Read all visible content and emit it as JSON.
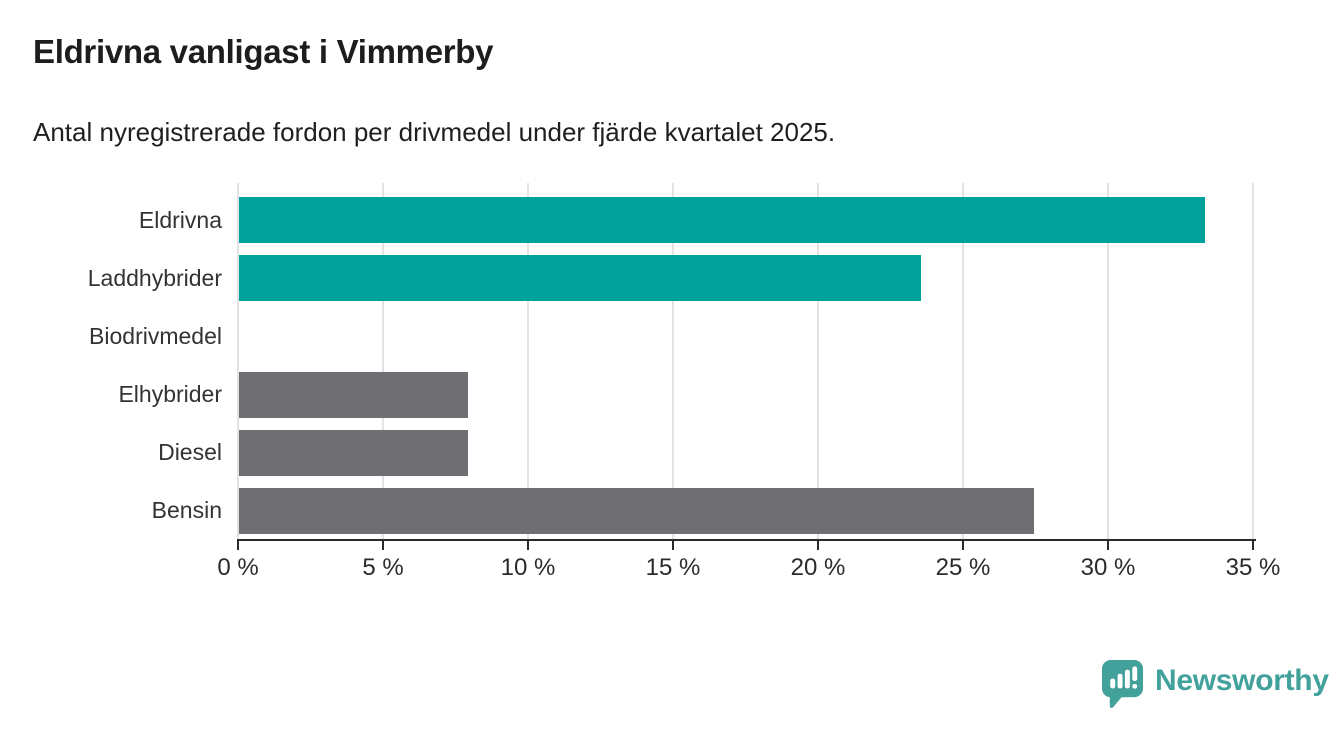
{
  "header": {
    "title": "Eldrivna vanligast i Vimmerby",
    "subtitle": "Antal nyregistrerade fordon per drivmedel under fjärde kvartalet 2025."
  },
  "chart_data": {
    "type": "bar",
    "orientation": "horizontal",
    "title": "Eldrivna vanligast i Vimmerby",
    "subtitle": "Antal nyregistrerade fordon per drivmedel under fjärde kvartalet 2025.",
    "categories": [
      "Eldrivna",
      "Laddhybrider",
      "Biodrivmedel",
      "Elhybrider",
      "Diesel",
      "Bensin"
    ],
    "values": [
      33.3,
      23.5,
      0,
      7.9,
      7.9,
      27.4
    ],
    "unit": "%",
    "bar_colors": [
      "#00a29a",
      "#00a29a",
      "#6e6e73",
      "#6e6e73",
      "#6e6e73",
      "#6e6e73"
    ],
    "xlabel": "",
    "ylabel": "",
    "xlim": [
      0,
      35
    ],
    "x_ticks": [
      0,
      5,
      10,
      15,
      20,
      25,
      30,
      35
    ],
    "x_tick_labels": [
      "0 %",
      "5 %",
      "10 %",
      "15 %",
      "20 %",
      "25 %",
      "30 %",
      "35 %"
    ],
    "grid": "vertical-gridlines-on",
    "legend_position": "none"
  },
  "colors": {
    "highlight": "#00a29a",
    "muted": "#6e6e73",
    "gridline": "#e3e3e3",
    "axis": "#2b2b2b",
    "text": "#1d1d1d",
    "brand": "#43a19c"
  },
  "footer": {
    "brand": "Newsworthy",
    "logo_icon": "speech-bubble-bar-chart-icon"
  }
}
